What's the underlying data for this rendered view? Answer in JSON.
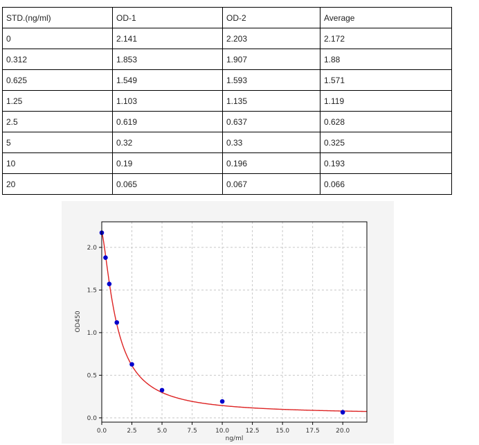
{
  "table": {
    "headers": [
      "STD.(ng/ml)",
      "OD-1",
      "OD-2",
      "Average"
    ],
    "rows": [
      [
        "0",
        "2.141",
        "2.203",
        "2.172"
      ],
      [
        "0.312",
        "1.853",
        "1.907",
        "1.88"
      ],
      [
        "0.625",
        "1.549",
        "1.593",
        "1.571"
      ],
      [
        "1.25",
        "1.103",
        "1.135",
        "1.119"
      ],
      [
        "2.5",
        "0.619",
        "0.637",
        "0.628"
      ],
      [
        "5",
        "0.32",
        "0.33",
        "0.325"
      ],
      [
        "10",
        "0.19",
        "0.196",
        "0.193"
      ],
      [
        "20",
        "0.065",
        "0.067",
        "0.066"
      ]
    ]
  },
  "chart_data": {
    "type": "scatter",
    "xlabel": "ng/ml",
    "ylabel": "OD450",
    "xlim": [
      0,
      22
    ],
    "ylim": [
      -0.05,
      2.3
    ],
    "xticks": [
      "0.0",
      "2.5",
      "5.0",
      "7.5",
      "10.0",
      "12.5",
      "15.0",
      "17.5",
      "20.0"
    ],
    "yticks": [
      "0.0",
      "0.5",
      "1.0",
      "1.5",
      "2.0"
    ],
    "grid": true,
    "series": [
      {
        "points": [
          {
            "x": 0,
            "y": 2.172
          },
          {
            "x": 0.312,
            "y": 1.88
          },
          {
            "x": 0.625,
            "y": 1.571
          },
          {
            "x": 1.25,
            "y": 1.119
          },
          {
            "x": 2.5,
            "y": 0.628
          },
          {
            "x": 5,
            "y": 0.325
          },
          {
            "x": 10,
            "y": 0.193
          },
          {
            "x": 20,
            "y": 0.066
          }
        ],
        "color": "#0000cc"
      }
    ],
    "fit_curve": {
      "color": "#dd2222"
    }
  }
}
